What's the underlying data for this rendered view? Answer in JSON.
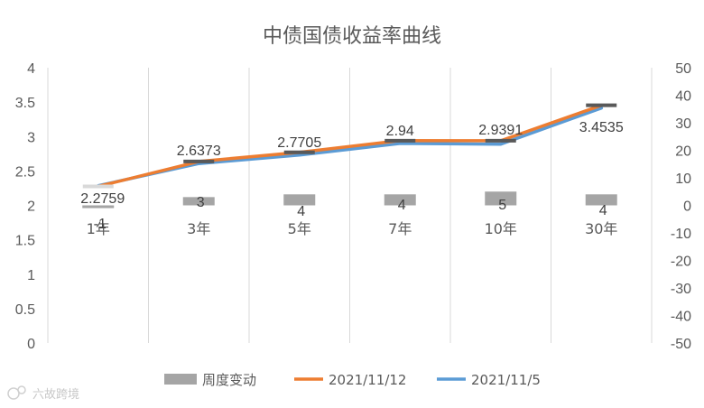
{
  "watermark": "六故跨境",
  "chart_data": {
    "type": "bar+line",
    "title": "中债国债收益率曲线",
    "categories": [
      "1年",
      "3年",
      "5年",
      "7年",
      "10年",
      "30年"
    ],
    "left_axis": {
      "ylim": [
        0,
        4
      ],
      "ticks": [
        "0",
        "0.5",
        "1",
        "1.5",
        "2",
        "2.5",
        "3",
        "3.5",
        "4"
      ]
    },
    "right_axis": {
      "ylim": [
        -50,
        50
      ],
      "ticks": [
        "-50",
        "-40",
        "-30",
        "-20",
        "-10",
        "0",
        "10",
        "20",
        "30",
        "40",
        "50"
      ]
    },
    "grid": "vertical",
    "legend_position": "bottom",
    "series": [
      {
        "name": "周度变动",
        "type": "bar",
        "axis": "right",
        "color": "#a5a5a5",
        "values": [
          -1,
          3,
          4,
          4,
          5,
          4
        ],
        "labels": [
          "-1",
          "3",
          "4",
          "4",
          "5",
          "4"
        ]
      },
      {
        "name": "2021/11/12",
        "type": "line",
        "axis": "left",
        "color": "#ed7d31",
        "values": [
          2.2759,
          2.6373,
          2.7705,
          2.94,
          2.9391,
          3.4535
        ],
        "labels": [
          "2.2759",
          "2.6373",
          "2.7705",
          "2.94",
          "2.9391",
          "3.4535"
        ]
      },
      {
        "name": "2021/11/5",
        "type": "line",
        "axis": "left",
        "color": "#5b9bd5",
        "values": [
          2.2859,
          2.6073,
          2.7305,
          2.9,
          2.8891,
          3.4135
        ]
      }
    ]
  }
}
